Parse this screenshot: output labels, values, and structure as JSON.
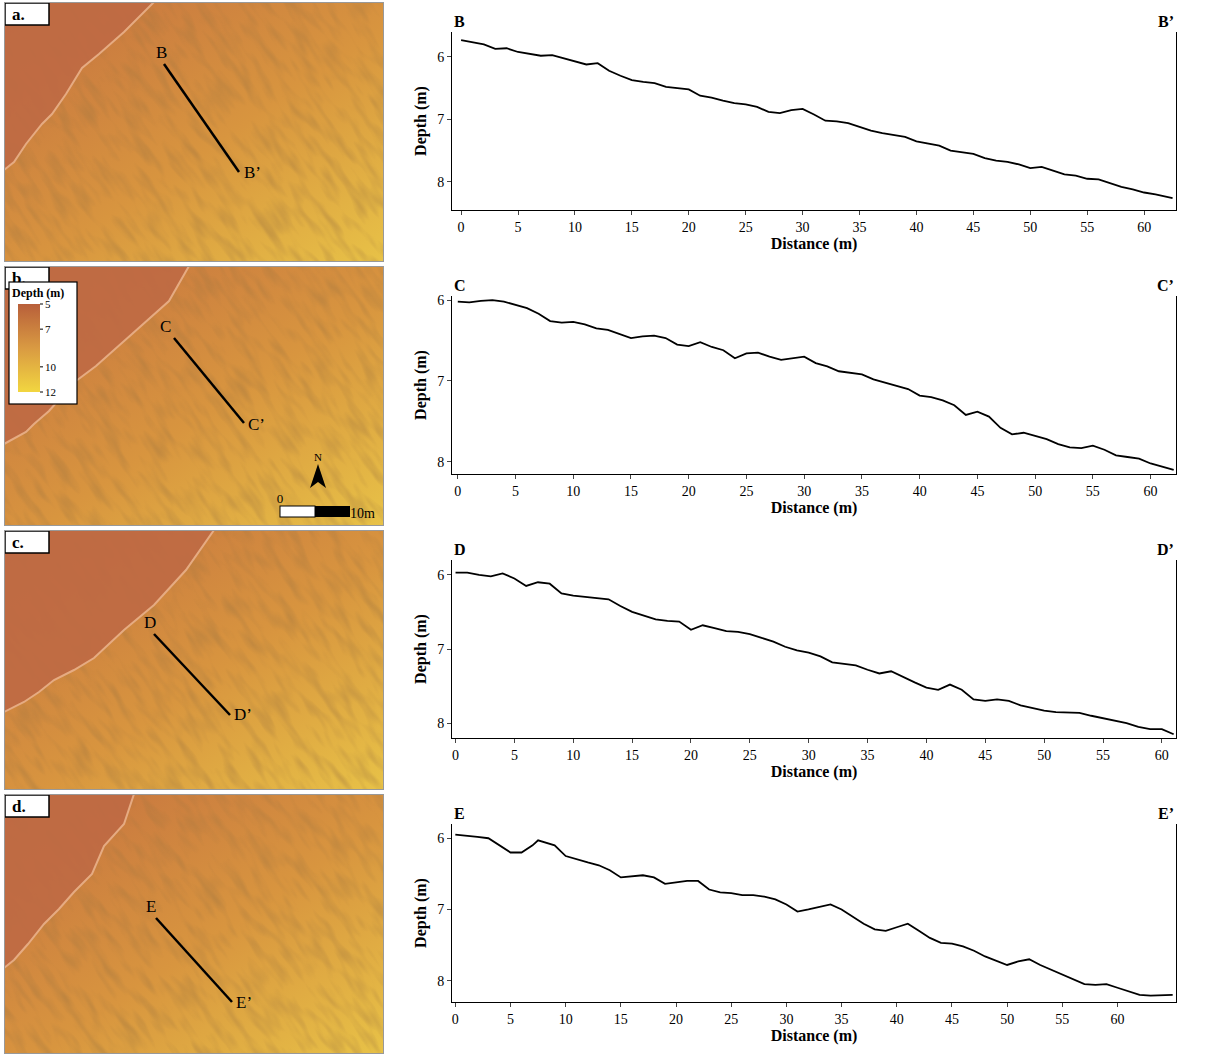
{
  "chart_data": [
    {
      "type": "line",
      "color": "#000000",
      "xlabel": "Distance (m)",
      "ylabel": "Depth (m)",
      "grid": false,
      "annotations": [
        "B",
        "B’"
      ],
      "xlim": [
        -0.8,
        62.8
      ],
      "ylim": [
        8.45,
        5.6
      ],
      "xticks": [
        0,
        5,
        10,
        15,
        20,
        25,
        30,
        35,
        40,
        45,
        50,
        55,
        60
      ],
      "yticks": [
        6,
        7,
        8
      ],
      "x": [
        0,
        1,
        2,
        3,
        4,
        5,
        6,
        7,
        8,
        9,
        10,
        11,
        12,
        13,
        14,
        15,
        16,
        17,
        18,
        19,
        20,
        21,
        22,
        23,
        24,
        25,
        26,
        27,
        28,
        29,
        30,
        31,
        32,
        33,
        34,
        35,
        36,
        37,
        38,
        39,
        40,
        41,
        42,
        43,
        44,
        45,
        46,
        47,
        48,
        49,
        50,
        51,
        52,
        53,
        54,
        55,
        56,
        57,
        58,
        59,
        60,
        61,
        62,
        62.5
      ],
      "values": [
        5.73,
        5.76,
        5.8,
        5.87,
        5.86,
        5.92,
        5.95,
        5.98,
        5.97,
        6.02,
        6.08,
        6.12,
        6.1,
        6.22,
        6.3,
        6.37,
        6.4,
        6.42,
        6.48,
        6.5,
        6.52,
        6.62,
        6.65,
        6.7,
        6.74,
        6.76,
        6.8,
        6.88,
        6.9,
        6.85,
        6.83,
        6.92,
        7.02,
        7.03,
        7.06,
        7.12,
        7.18,
        7.22,
        7.25,
        7.28,
        7.35,
        7.38,
        7.42,
        7.5,
        7.52,
        7.55,
        7.62,
        7.66,
        7.68,
        7.72,
        7.78,
        7.76,
        7.82,
        7.88,
        7.9,
        7.95,
        7.96,
        8.02,
        8.08,
        8.12,
        8.17,
        8.2,
        8.24,
        8.26
      ]
    },
    {
      "type": "line",
      "color": "#000000",
      "xlabel": "Distance (m)",
      "ylabel": "Depth (m)",
      "grid": false,
      "annotations": [
        "C",
        "C’"
      ],
      "xlim": [
        -0.5,
        62.2
      ],
      "ylim": [
        8.15,
        5.95
      ],
      "xticks": [
        0,
        5,
        10,
        15,
        20,
        25,
        30,
        35,
        40,
        45,
        50,
        55,
        60
      ],
      "yticks": [
        6,
        7,
        8
      ],
      "x": [
        0,
        1,
        2,
        3,
        4,
        5,
        6,
        7,
        8,
        9,
        10,
        11,
        12,
        13,
        14,
        15,
        16,
        17,
        18,
        19,
        20,
        21,
        22,
        23,
        24,
        25,
        26,
        27,
        28,
        29,
        30,
        31,
        32,
        33,
        34,
        35,
        36,
        37,
        38,
        39,
        40,
        41,
        42,
        43,
        44,
        45,
        46,
        47,
        48,
        49,
        50,
        51,
        52,
        53,
        54,
        55,
        56,
        57,
        58,
        59,
        60,
        61,
        62
      ],
      "values": [
        6.02,
        6.03,
        6.01,
        6.0,
        6.02,
        6.06,
        6.1,
        6.17,
        6.26,
        6.28,
        6.27,
        6.3,
        6.35,
        6.37,
        6.42,
        6.47,
        6.45,
        6.44,
        6.47,
        6.55,
        6.57,
        6.52,
        6.58,
        6.62,
        6.72,
        6.66,
        6.65,
        6.7,
        6.74,
        6.72,
        6.7,
        6.78,
        6.82,
        6.88,
        6.9,
        6.92,
        6.98,
        7.02,
        7.06,
        7.1,
        7.18,
        7.2,
        7.24,
        7.3,
        7.42,
        7.38,
        7.44,
        7.58,
        7.66,
        7.64,
        7.68,
        7.72,
        7.78,
        7.82,
        7.83,
        7.8,
        7.85,
        7.92,
        7.94,
        7.96,
        8.02,
        8.06,
        8.1
      ]
    },
    {
      "type": "line",
      "color": "#000000",
      "xlabel": "Distance (m)",
      "ylabel": "Depth (m)",
      "grid": false,
      "annotations": [
        "D",
        "D’"
      ],
      "xlim": [
        -0.3,
        61.2
      ],
      "ylim": [
        8.2,
        5.8
      ],
      "xticks": [
        0,
        5,
        10,
        15,
        20,
        25,
        30,
        35,
        40,
        45,
        50,
        55,
        60
      ],
      "yticks": [
        6,
        7,
        8
      ],
      "x": [
        0,
        1,
        2,
        3,
        4,
        5,
        6,
        7,
        8,
        9,
        10,
        11,
        12,
        13,
        14,
        15,
        16,
        17,
        18,
        19,
        20,
        21,
        22,
        23,
        24,
        25,
        26,
        27,
        28,
        29,
        30,
        31,
        32,
        33,
        34,
        35,
        36,
        37,
        38,
        39,
        40,
        41,
        42,
        43,
        44,
        45,
        46,
        47,
        48,
        49,
        50,
        51,
        52,
        53,
        54,
        55,
        56,
        57,
        58,
        59,
        60,
        61
      ],
      "values": [
        5.97,
        5.97,
        6.0,
        6.02,
        5.98,
        6.05,
        6.15,
        6.1,
        6.12,
        6.25,
        6.28,
        6.3,
        6.32,
        6.33,
        6.42,
        6.5,
        6.55,
        6.6,
        6.62,
        6.63,
        6.74,
        6.68,
        6.72,
        6.76,
        6.77,
        6.8,
        6.85,
        6.9,
        6.97,
        7.02,
        7.05,
        7.1,
        7.18,
        7.2,
        7.22,
        7.28,
        7.33,
        7.3,
        7.38,
        7.45,
        7.52,
        7.55,
        7.48,
        7.55,
        7.68,
        7.7,
        7.68,
        7.7,
        7.76,
        7.8,
        7.83,
        7.85,
        7.86,
        7.86,
        7.9,
        7.93,
        7.96,
        8.0,
        8.05,
        8.08,
        8.08,
        8.15
      ]
    },
    {
      "type": "line",
      "color": "#000000",
      "xlabel": "Distance (m)",
      "ylabel": "Depth (m)",
      "grid": false,
      "annotations": [
        "E",
        "E’"
      ],
      "xlim": [
        -0.3,
        65.3
      ],
      "ylim": [
        8.3,
        5.8
      ],
      "xticks": [
        0,
        5,
        10,
        15,
        20,
        25,
        30,
        35,
        40,
        45,
        50,
        55,
        60
      ],
      "yticks": [
        6,
        7,
        8
      ],
      "x": [
        0,
        1,
        2,
        3,
        4,
        5,
        6,
        7,
        7.5,
        8.5,
        9,
        10,
        11,
        12,
        13,
        14,
        15,
        16,
        17,
        18,
        19,
        20,
        21,
        22,
        23,
        24,
        25,
        26,
        27,
        28,
        29,
        30,
        31,
        32,
        33,
        34,
        35,
        36,
        37,
        38,
        39,
        40,
        41,
        42,
        43,
        44,
        45,
        46,
        47,
        48,
        49,
        50,
        51,
        52,
        53,
        54,
        55,
        56,
        57,
        58,
        59,
        60,
        61,
        62,
        63,
        64,
        65
      ],
      "values": [
        5.95,
        5.96,
        5.98,
        6.0,
        6.1,
        6.2,
        6.2,
        6.1,
        6.03,
        6.07,
        6.1,
        6.25,
        6.3,
        6.34,
        6.38,
        6.45,
        6.55,
        6.53,
        6.52,
        6.55,
        6.64,
        6.62,
        6.6,
        6.6,
        6.72,
        6.76,
        6.77,
        6.8,
        6.8,
        6.82,
        6.86,
        6.93,
        7.03,
        7.0,
        6.97,
        6.93,
        7.0,
        7.1,
        7.2,
        7.28,
        7.3,
        7.25,
        7.2,
        7.3,
        7.4,
        7.47,
        7.48,
        7.52,
        7.58,
        7.66,
        7.72,
        7.78,
        7.73,
        7.7,
        7.78,
        7.85,
        7.92,
        7.99,
        8.05,
        8.06,
        8.05,
        8.1,
        8.15,
        8.2,
        8.21,
        8.2,
        8.2
      ]
    }
  ],
  "maps": {
    "panels": [
      "a.",
      "b.",
      "c.",
      "d."
    ],
    "colorbar": {
      "title": "Depth (m)",
      "range": [
        5,
        12
      ],
      "ticks": [
        5,
        7,
        10,
        12
      ]
    },
    "scale_bar": {
      "labels": [
        "0",
        "10m"
      ]
    },
    "north": "N"
  }
}
